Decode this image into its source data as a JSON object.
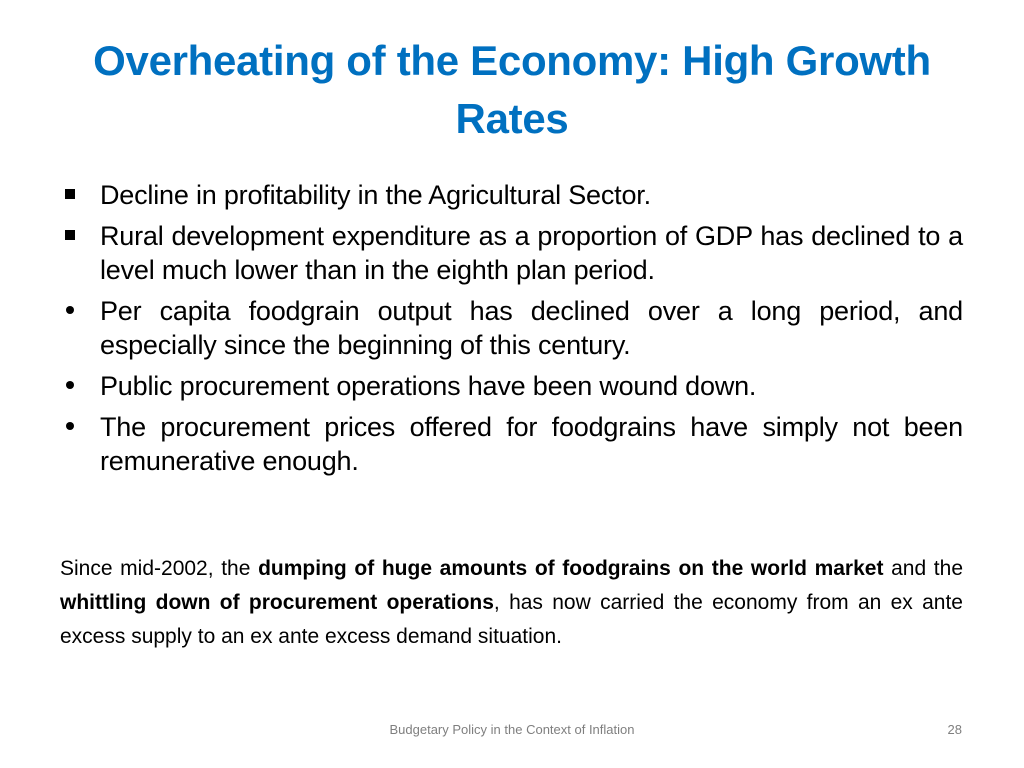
{
  "slide": {
    "title": "Overheating of the Economy: High Growth Rates",
    "bullets": [
      {
        "marker": "square",
        "text": "Decline in profitability in the Agricultural Sector."
      },
      {
        "marker": "square",
        "text": "Rural development expenditure as a proportion of GDP has declined to a level much lower than in the eighth plan period."
      },
      {
        "marker": "dot",
        "text": "Per capita foodgrain output has declined over a long period, and especially since the beginning of this century."
      },
      {
        "marker": "dot",
        "text": "Public procurement operations have been wound down."
      },
      {
        "marker": "dot",
        "text": "The procurement prices offered for foodgrains have simply not been remunerative enough."
      }
    ],
    "paragraph": {
      "part1": "Since mid-2002, the ",
      "bold1": "dumping of huge amounts of foodgrains on the world market",
      "part2": " and the ",
      "bold2": "whittling down of procurement operations",
      "part3": ", has now carried the economy from an ex ante excess supply to an ex ante excess demand situation."
    },
    "footer": "Budgetary Policy in the Context of Inflation",
    "page_number": "28"
  },
  "colors": {
    "title": "#0070C0",
    "body_text": "#000000",
    "footer": "#7f7f7f"
  }
}
